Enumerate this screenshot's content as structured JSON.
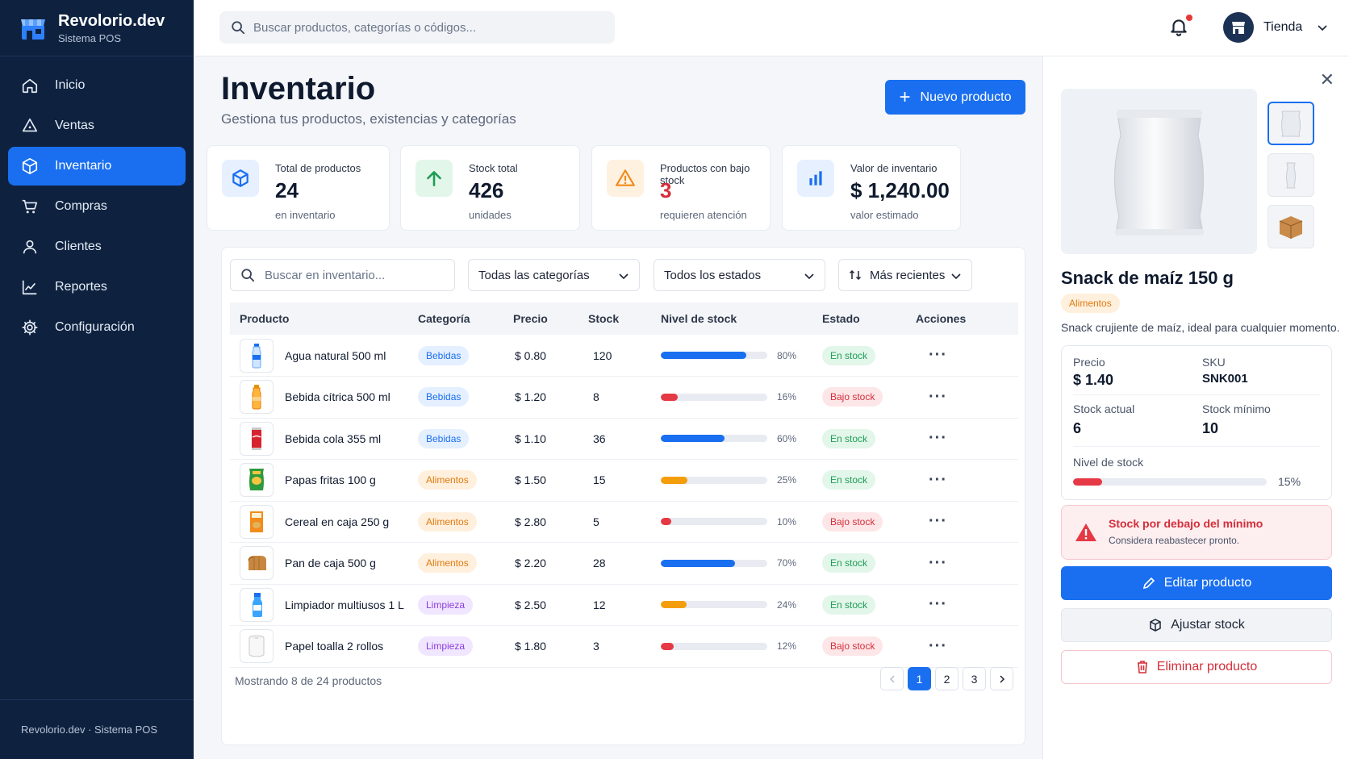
{
  "brand": {
    "name": "Revolorio.dev",
    "subtitle": "Sistema POS",
    "footer": "Revolorio.dev · Sistema POS"
  },
  "nav": [
    {
      "label": "Inicio",
      "icon": "home-icon"
    },
    {
      "label": "Ventas",
      "icon": "tag-icon"
    },
    {
      "label": "Inventario",
      "icon": "box-icon",
      "active": true
    },
    {
      "label": "Compras",
      "icon": "cart-icon"
    },
    {
      "label": "Clientes",
      "icon": "user-icon"
    },
    {
      "label": "Reportes",
      "icon": "chart-icon"
    },
    {
      "label": "Configuración",
      "icon": "gear-icon"
    }
  ],
  "topbar": {
    "search_placeholder": "Buscar productos, categorías o códigos...",
    "store_label": "Tienda"
  },
  "page": {
    "title": "Inventario",
    "subtitle": "Gestiona tus productos, existencias y categorías",
    "new_button": "Nuevo producto"
  },
  "stats": [
    {
      "label": "Total de productos",
      "value": "24",
      "note": "en inventario",
      "icon": "cube-icon",
      "color": "#1a6ff0"
    },
    {
      "label": "Stock total",
      "value": "426",
      "note": "unidades",
      "icon": "arrow-up-icon",
      "color": "#1f9d55"
    },
    {
      "label": "Productos con bajo stock",
      "value": "3",
      "note": "requieren atención",
      "icon": "warning-icon",
      "color": "#f08a1a"
    },
    {
      "label": "Valor de inventario",
      "value": "$ 1,240.00",
      "note": "valor estimado",
      "icon": "bar-chart-icon",
      "color": "#1a6ff0"
    }
  ],
  "filters": {
    "search_placeholder": "Buscar en inventario...",
    "category": "Todas las categorías",
    "status": "Todos los estados",
    "sort": "Más recientes"
  },
  "table": {
    "headers": [
      "Producto",
      "Categoría",
      "Precio",
      "Stock",
      "Nivel de stock",
      "Estado",
      "Acciones"
    ],
    "rows": [
      {
        "name": "Agua natural 500 ml",
        "category": "Bebidas",
        "price": "$ 0.80",
        "stock": "120",
        "level": 80,
        "level_label": "80%",
        "status": "En stock"
      },
      {
        "name": "Bebida cítrica 500 ml",
        "category": "Bebidas",
        "price": "$ 1.20",
        "stock": "8",
        "level": 16,
        "level_label": "16%",
        "status": "Bajo stock"
      },
      {
        "name": "Bebida cola 355 ml",
        "category": "Bebidas",
        "price": "$ 1.10",
        "stock": "36",
        "level": 60,
        "level_label": "60%",
        "status": "En stock"
      },
      {
        "name": "Papas fritas 100 g",
        "category": "Alimentos",
        "price": "$ 1.50",
        "stock": "15",
        "level": 25,
        "level_label": "25%",
        "status": "En stock"
      },
      {
        "name": "Cereal en caja 250 g",
        "category": "Alimentos",
        "price": "$ 2.80",
        "stock": "5",
        "level": 10,
        "level_label": "10%",
        "status": "Bajo stock"
      },
      {
        "name": "Pan de caja 500 g",
        "category": "Alimentos",
        "price": "$ 2.20",
        "stock": "28",
        "level": 70,
        "level_label": "70%",
        "status": "En stock"
      },
      {
        "name": "Limpiador multiusos 1 L",
        "category": "Limpieza",
        "price": "$ 2.50",
        "stock": "12",
        "level": 24,
        "level_label": "24%",
        "status": "En stock"
      },
      {
        "name": "Papel toalla 2 rollos",
        "category": "Limpieza",
        "price": "$ 1.80",
        "stock": "3",
        "level": 12,
        "level_label": "12%",
        "status": "Bajo stock"
      }
    ]
  },
  "footer": {
    "showing": "Mostrando 8 de 24 productos",
    "pages": [
      "1",
      "2",
      "3"
    ],
    "current_page": "1"
  },
  "detail": {
    "name": "Snack de maíz 150 g",
    "category": "Alimentos",
    "description": "Snack crujiente de maíz, ideal para cualquier momento.",
    "price_label": "Precio",
    "price": "$ 1.40",
    "sku_label": "SKU",
    "sku": "SNK001",
    "stock_label": "Stock actual",
    "stock": "6",
    "min_label": "Stock mínimo",
    "min": "10",
    "level_label": "Nivel de stock",
    "level": 15,
    "level_text": "15%",
    "alert_title": "Stock por debajo del mínimo",
    "alert_text": "Considera reabastecer pronto.",
    "edit_button": "Editar producto",
    "adjust_button": "Ajustar stock",
    "delete_button": "Eliminar producto"
  },
  "colors": {
    "primary": "#1a6ff0",
    "sidebar": "#0e2240",
    "success": "#1f9d55",
    "danger": "#d32f3a",
    "warning": "#f59e0b"
  }
}
